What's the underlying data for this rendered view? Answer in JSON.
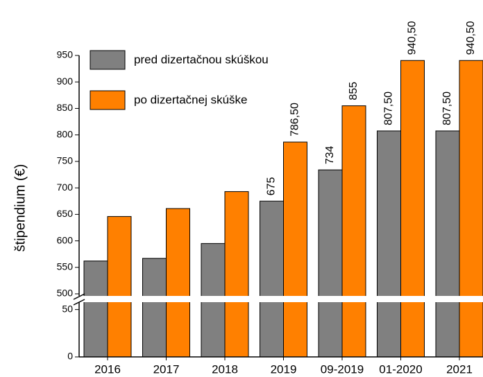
{
  "chart_data": {
    "type": "bar",
    "y_label": "štipendium (€)",
    "categories": [
      "2016",
      "2017",
      "2018",
      "2019",
      "09-2019",
      "01-2020",
      "2021"
    ],
    "series": [
      {
        "name": "pred dizertačnou skúškou",
        "color": "#808080",
        "values": [
          562,
          567,
          595,
          675,
          734,
          807.5,
          807.5
        ],
        "value_labels": [
          null,
          null,
          null,
          "675",
          "734",
          "807,50",
          "807,50"
        ]
      },
      {
        "name": "po dizertačnej skúške",
        "color": "#ff8000",
        "values": [
          646,
          661,
          693,
          786.5,
          855,
          940.5,
          940.5
        ],
        "value_labels": [
          null,
          null,
          null,
          "786,50",
          "855",
          "940,50",
          "940,50"
        ]
      }
    ],
    "ylim": [
      0,
      950
    ],
    "ybreak": [
      60,
      500
    ],
    "yticks": [
      0,
      50,
      500,
      550,
      600,
      650,
      700,
      750,
      800,
      850,
      900,
      950
    ],
    "legend": "upper left"
  }
}
